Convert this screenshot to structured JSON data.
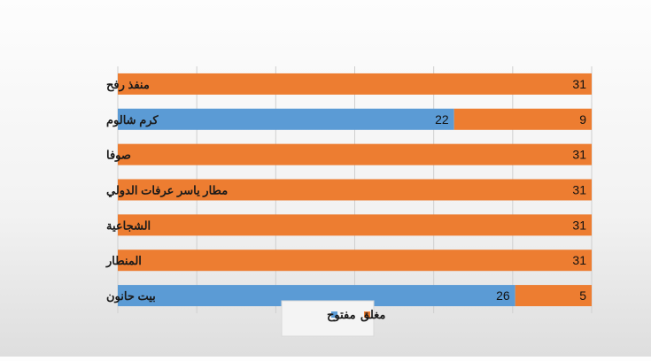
{
  "chart_data": {
    "type": "bar",
    "orientation": "horizontal",
    "stacked": true,
    "categories": [
      "منفذ رفح",
      "كرم شالوم",
      "صوفا",
      "مطار ياسر عرفات الدولي",
      "الشجاعية",
      "المنطار",
      "بيت حانون"
    ],
    "series": [
      {
        "name": "مفتوح",
        "color": "#5b9bd5",
        "values": [
          0,
          22,
          0,
          0,
          0,
          0,
          26
        ]
      },
      {
        "name": "مغلق",
        "color": "#ed7d31",
        "values": [
          31,
          9,
          31,
          31,
          31,
          31,
          5
        ]
      }
    ],
    "xlim": [
      0,
      31
    ],
    "grid": true,
    "legend": "bottom",
    "title": "",
    "xlabel": "",
    "ylabel": ""
  }
}
